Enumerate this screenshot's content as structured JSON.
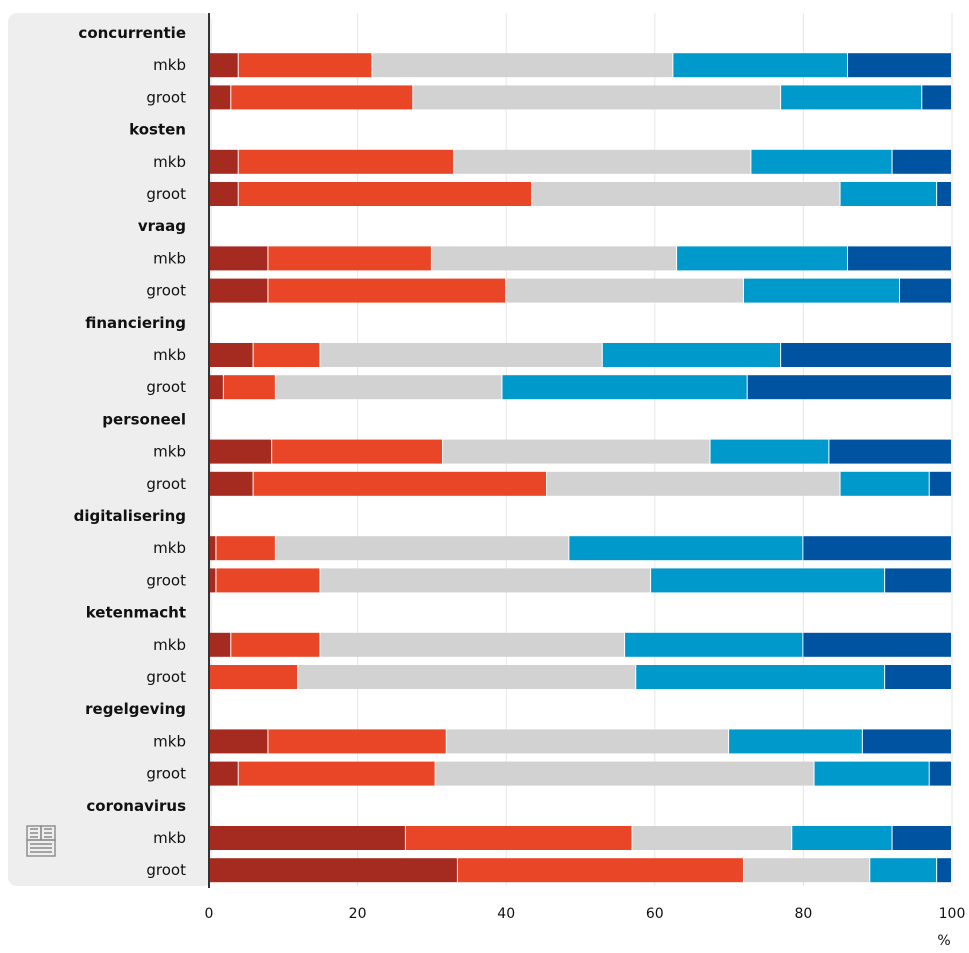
{
  "chart_data": {
    "type": "bar",
    "orientation": "horizontal",
    "stacked": true,
    "xlim": [
      0,
      100
    ],
    "xticks": [
      "0",
      "20",
      "40",
      "60",
      "80",
      "100"
    ],
    "xunit": "%",
    "grid": true,
    "legend": "none",
    "segment_colors": [
      "#a52a1f",
      "#e84627",
      "#d2d2d2",
      "#0099cc",
      "#0053a0"
    ],
    "groups": [
      {
        "label": "concurrentie",
        "rows": [
          {
            "label": "mkb",
            "values": [
              4,
              18,
              40.5,
              23.5,
              14
            ]
          },
          {
            "label": "groot",
            "values": [
              3,
              24.5,
              49.5,
              19,
              4
            ]
          }
        ]
      },
      {
        "label": "kosten",
        "rows": [
          {
            "label": "mkb",
            "values": [
              4,
              29,
              40,
              19,
              8
            ]
          },
          {
            "label": "groot",
            "values": [
              4,
              39.5,
              41.5,
              13,
              2
            ]
          }
        ]
      },
      {
        "label": "vraag",
        "rows": [
          {
            "label": "mkb",
            "values": [
              8,
              22,
              33,
              23,
              14
            ]
          },
          {
            "label": "groot",
            "values": [
              8,
              32,
              32,
              21,
              7
            ]
          }
        ]
      },
      {
        "label": "financiering",
        "rows": [
          {
            "label": "mkb",
            "values": [
              6,
              9,
              38,
              24,
              23
            ]
          },
          {
            "label": "groot",
            "values": [
              2,
              7,
              30.5,
              33,
              27.5
            ]
          }
        ]
      },
      {
        "label": "personeel",
        "rows": [
          {
            "label": "mkb",
            "values": [
              8.5,
              23,
              36,
              16,
              16.5
            ]
          },
          {
            "label": "groot",
            "values": [
              6,
              39.5,
              39.5,
              12,
              3
            ]
          }
        ]
      },
      {
        "label": "digitalisering",
        "rows": [
          {
            "label": "mkb",
            "values": [
              1,
              8,
              39.5,
              31.5,
              20
            ]
          },
          {
            "label": "groot",
            "values": [
              1,
              14,
              44.5,
              31.5,
              9
            ]
          }
        ]
      },
      {
        "label": "ketenmacht",
        "rows": [
          {
            "label": "mkb",
            "values": [
              3,
              12,
              41,
              24,
              20
            ]
          },
          {
            "label": "groot",
            "values": [
              0,
              12,
              45.5,
              33.5,
              9
            ]
          }
        ]
      },
      {
        "label": "regelgeving",
        "rows": [
          {
            "label": "mkb",
            "values": [
              8,
              24,
              38,
              18,
              12
            ]
          },
          {
            "label": "groot",
            "values": [
              4,
              26.5,
              51,
              15.5,
              3
            ]
          }
        ]
      },
      {
        "label": "coronavirus",
        "rows": [
          {
            "label": "mkb",
            "values": [
              26.5,
              30.5,
              21.5,
              13.5,
              8
            ]
          },
          {
            "label": "groot",
            "values": [
              33.5,
              38.5,
              17,
              9,
              2
            ]
          }
        ]
      }
    ]
  }
}
